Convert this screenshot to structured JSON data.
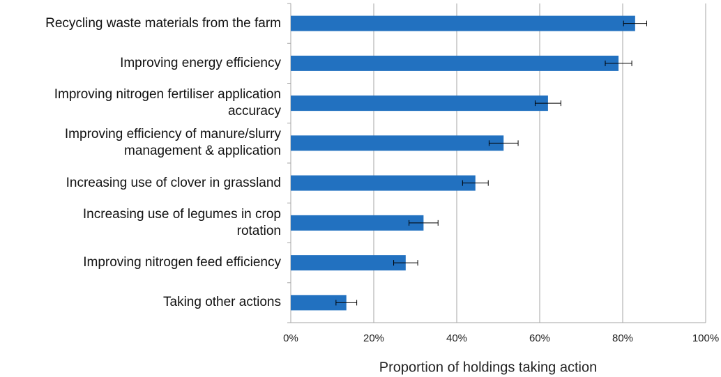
{
  "chart_data": {
    "type": "bar",
    "orientation": "horizontal",
    "x_label": "Proportion of holdings taking action",
    "categories": [
      "Recycling waste materials from the farm",
      "Improving energy efficiency",
      "Improving nitrogen fertiliser application\naccuracy",
      "Improving efficiency of manure/slurry\nmanagement & application",
      "Increasing use of clover in grassland",
      "Increasing use of legumes in crop\nrotation",
      "Improving nitrogen feed efficiency",
      "Taking other actions"
    ],
    "values": [
      83,
      79,
      62,
      51.3,
      44.5,
      32,
      27.7,
      13.4
    ],
    "errors": [
      2.8,
      3.2,
      3.1,
      3.5,
      3.1,
      3.5,
      2.9,
      2.5
    ],
    "color": "#2271c0",
    "xlim": [
      0,
      100
    ],
    "xticks": [
      {
        "value": 0,
        "label": "0%"
      },
      {
        "value": 20,
        "label": "20%"
      },
      {
        "value": 40,
        "label": "40%"
      },
      {
        "value": 60,
        "label": "60%"
      },
      {
        "value": 80,
        "label": "80%"
      },
      {
        "value": 100,
        "label": "100%"
      }
    ],
    "grid": true
  }
}
